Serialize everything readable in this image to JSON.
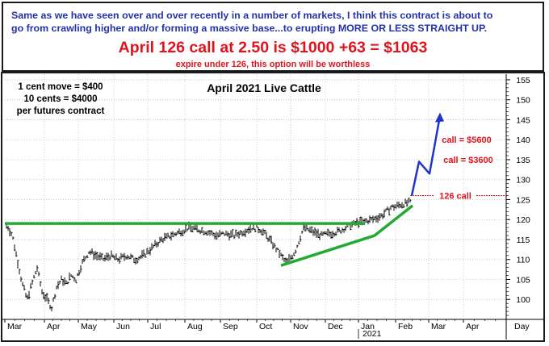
{
  "header": {
    "line1": "Same as we have seen over and over recently in a number of markets, I think this contract is about to",
    "line2": "go from crawling higher and/or forming a massive base...to erupting MORE OR LESS STRAIGHT UP.",
    "headline": "April 126 call at 2.50 is $1000 +63 = $1063",
    "subline": "expire under 126, this option will be worthless"
  },
  "colors": {
    "blue_text": "#2233aa",
    "red_text": "#e0141e",
    "trendline": "#22aa33",
    "projection": "#2233cc",
    "price_bars": "#000000",
    "grid": "#bbbbbb"
  },
  "chart_data": {
    "type": "line",
    "title": "April 2021 Live Cattle",
    "notes": [
      "1 cent move = $400",
      "10 cents = $4000",
      "per futures contract"
    ],
    "y_axis": {
      "side": "right",
      "range": [
        95,
        156
      ],
      "ticks": [
        100,
        105,
        110,
        115,
        120,
        125,
        130,
        135,
        140,
        145,
        150,
        155
      ]
    },
    "x_axis": {
      "months": [
        "Mar",
        "Apr",
        "May",
        "Jun",
        "Jul",
        "Aug",
        "Sep",
        "Oct",
        "Nov",
        "Dec",
        "Jan",
        "Feb",
        "Mar",
        "Apr"
      ],
      "year_label": "2021",
      "unit_label": "Day"
    },
    "grid": true,
    "price_series": {
      "name": "April 2021 Live Cattle daily bars",
      "points": [
        [
          "Mar",
          118.5
        ],
        [
          "Mar",
          116
        ],
        [
          "Mar",
          110
        ],
        [
          "Mar",
          104
        ],
        [
          "Mar",
          100
        ],
        [
          "Mar",
          104
        ],
        [
          "Mar",
          108
        ],
        [
          "Mar",
          102
        ],
        [
          "Apr",
          100
        ],
        [
          "Apr",
          98
        ],
        [
          "Apr",
          103
        ],
        [
          "Apr",
          105
        ],
        [
          "Apr",
          104
        ],
        [
          "Apr",
          106
        ],
        [
          "Apr",
          105
        ],
        [
          "May",
          109
        ],
        [
          "May",
          112
        ],
        [
          "May",
          111
        ],
        [
          "May",
          110
        ],
        [
          "May",
          111
        ],
        [
          "Jun",
          110
        ],
        [
          "Jun",
          111
        ],
        [
          "Jun",
          110
        ],
        [
          "Jun",
          111
        ],
        [
          "Jul",
          113
        ],
        [
          "Jul",
          115
        ],
        [
          "Jul",
          116
        ],
        [
          "Jul",
          117
        ],
        [
          "Aug",
          118
        ],
        [
          "Aug",
          117.5
        ],
        [
          "Aug",
          117
        ],
        [
          "Aug",
          116
        ],
        [
          "Sep",
          116.5
        ],
        [
          "Sep",
          116
        ],
        [
          "Sep",
          117
        ],
        [
          "Sep",
          118
        ],
        [
          "Oct",
          117.5
        ],
        [
          "Oct",
          115
        ],
        [
          "Oct",
          112
        ],
        [
          "Oct",
          109
        ],
        [
          "Nov",
          112
        ],
        [
          "Nov",
          118
        ],
        [
          "Nov",
          117
        ],
        [
          "Nov",
          116
        ],
        [
          "Dec",
          116.5
        ],
        [
          "Dec",
          117
        ],
        [
          "Dec",
          118
        ],
        [
          "Dec",
          119
        ],
        [
          "Jan",
          119.5
        ],
        [
          "Jan",
          120
        ],
        [
          "Jan",
          121
        ],
        [
          "Jan",
          123
        ],
        [
          "Feb",
          124
        ],
        [
          "Feb",
          124.5
        ]
      ]
    },
    "annotations": {
      "resistance_line": {
        "label": "",
        "from": [
          "Mar",
          119
        ],
        "to": [
          "Jan",
          119
        ]
      },
      "support_trendline": {
        "label": "",
        "from": [
          "Oct",
          108.5
        ],
        "mid": [
          "Jan",
          116
        ],
        "to": [
          "Feb",
          123.5
        ]
      },
      "strike_line": {
        "label": "126 call",
        "value": 126
      },
      "projection_path": [
        [
          "Feb",
          126
        ],
        [
          "Feb",
          134.5
        ],
        [
          "Mar",
          131.5
        ],
        [
          "Mar",
          146
        ]
      ],
      "callouts": [
        {
          "label": "call = $5600",
          "value": 140
        },
        {
          "label": "call = $3600",
          "value": 135
        }
      ]
    }
  }
}
